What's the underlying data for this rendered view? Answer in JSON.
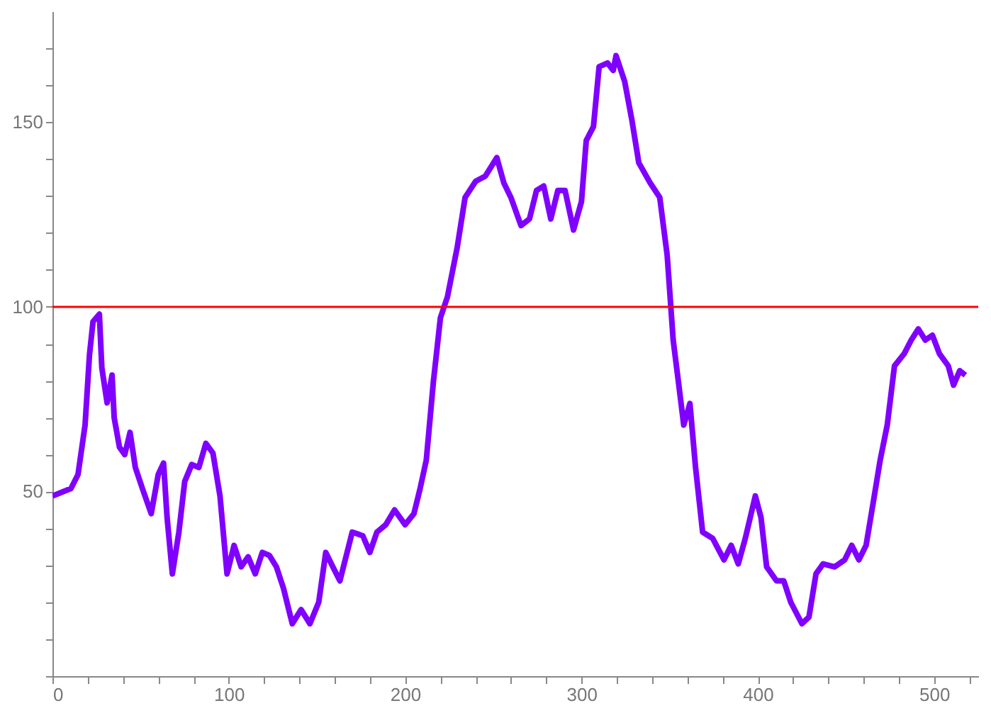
{
  "chart_data": {
    "type": "line",
    "xlim": [
      0,
      525
    ],
    "ylim": [
      0,
      180
    ],
    "xticks": [
      0,
      {
        "value": 20,
        "label": null
      },
      {
        "value": 40,
        "label": null
      },
      {
        "value": 60,
        "label": null
      },
      {
        "value": 80,
        "label": null
      },
      100,
      {
        "value": 120,
        "label": null
      },
      {
        "value": 140,
        "label": null
      },
      {
        "value": 160,
        "label": null
      },
      {
        "value": 180,
        "label": null
      },
      200,
      {
        "value": 220,
        "label": null
      },
      {
        "value": 240,
        "label": null
      },
      {
        "value": 260,
        "label": null
      },
      {
        "value": 280,
        "label": null
      },
      300,
      {
        "value": 320,
        "label": null
      },
      {
        "value": 340,
        "label": null
      },
      {
        "value": 360,
        "label": null
      },
      {
        "value": 380,
        "label": null
      },
      400,
      {
        "value": 420,
        "label": null
      },
      {
        "value": 440,
        "label": null
      },
      {
        "value": 460,
        "label": null
      },
      {
        "value": 480,
        "label": null
      },
      500,
      {
        "value": 520,
        "label": null
      }
    ],
    "yticks": [
      {
        "value": 0,
        "label": null
      },
      {
        "value": 10,
        "label": null
      },
      {
        "value": 20,
        "label": null
      },
      {
        "value": 30,
        "label": null
      },
      {
        "value": 40,
        "label": null
      },
      50,
      {
        "value": 60,
        "label": null
      },
      {
        "value": 70,
        "label": null
      },
      {
        "value": 80,
        "label": null
      },
      {
        "value": 90,
        "label": null
      },
      100,
      {
        "value": 110,
        "label": null
      },
      {
        "value": 120,
        "label": null
      },
      {
        "value": 130,
        "label": null
      },
      {
        "value": 140,
        "label": null
      },
      150,
      {
        "value": 160,
        "label": null
      },
      {
        "value": 170,
        "label": null
      }
    ],
    "grid": false,
    "ref_lines": [
      {
        "axis": "y",
        "value": 100,
        "color": "#ff0000"
      }
    ],
    "x": [
      0,
      10.5,
      14.5,
      18.5,
      21,
      23,
      26.6,
      28,
      31,
      33.8,
      35,
      38,
      41,
      44,
      47,
      51,
      56,
      60,
      63,
      65,
      68,
      71.7,
      75,
      79,
      83,
      87,
      91,
      95,
      99,
      103,
      107,
      111,
      115,
      119,
      123,
      127,
      131,
      136,
      141,
      146,
      151,
      155,
      159,
      163,
      170,
      176,
      180,
      184,
      189,
      194,
      200,
      205,
      208.5,
      212,
      216,
      220,
      224,
      229.5,
      234,
      240,
      245.5,
      252,
      256,
      260,
      265.7,
      270.5,
      274.5,
      278.6,
      282.6,
      286.6,
      290.7,
      295.5,
      300,
      302.7,
      306.8,
      310,
      314.8,
      318,
      319.6,
      324.5,
      328.5,
      332.5,
      339,
      344.4,
      348.6,
      352,
      355,
      358,
      361.5,
      364.7,
      368.7,
      374.4,
      380.8,
      384.9,
      388.9,
      392.9,
      398.6,
      401.8,
      405,
      410.6,
      414.7,
      418.7,
      425,
      429,
      433,
      437,
      443.6,
      449.3,
      453.3,
      457.3,
      461.4,
      465.4,
      469.4,
      473.4,
      477.5,
      483,
      487,
      491,
      495,
      499,
      503,
      508,
      511,
      514.5,
      517.7
    ],
    "series": [
      {
        "color": "#8000ff",
        "values": [
          48.8,
          50.8,
          54.6,
          68,
          87,
          96,
          98,
          83.5,
          74,
          81.5,
          70,
          62,
          60,
          66,
          56.5,
          50.8,
          44,
          54.6,
          57.7,
          43,
          27.7,
          39,
          52.7,
          57.3,
          56.5,
          63,
          60.4,
          48.8,
          27.7,
          35.4,
          29.6,
          32.3,
          27.7,
          33.5,
          32.7,
          29.6,
          23.8,
          14.2,
          18,
          14.2,
          20,
          33.5,
          29.6,
          25.8,
          39,
          38,
          33.5,
          39,
          41,
          45,
          41,
          44,
          50.8,
          58.5,
          79.6,
          97,
          102.7,
          116,
          129.6,
          134,
          135.4,
          140.4,
          133.5,
          129.6,
          122,
          123.8,
          131.5,
          132.7,
          123.8,
          131.5,
          131.5,
          120.8,
          128.5,
          145,
          148.8,
          165,
          166,
          164,
          168,
          161,
          150.8,
          139,
          133.5,
          129.6,
          114,
          91,
          79.6,
          68,
          73.8,
          56.5,
          39,
          37.3,
          31.5,
          35.4,
          30.4,
          37.3,
          48.8,
          43,
          29.6,
          25.8,
          25.8,
          20,
          14.2,
          16,
          27.7,
          30.4,
          29.6,
          31.5,
          35.4,
          31.5,
          35.4,
          46.9,
          58.5,
          68,
          84,
          87.3,
          91,
          94,
          91,
          92.3,
          87.3,
          84,
          78.8,
          82.7,
          81.5
        ]
      }
    ]
  }
}
